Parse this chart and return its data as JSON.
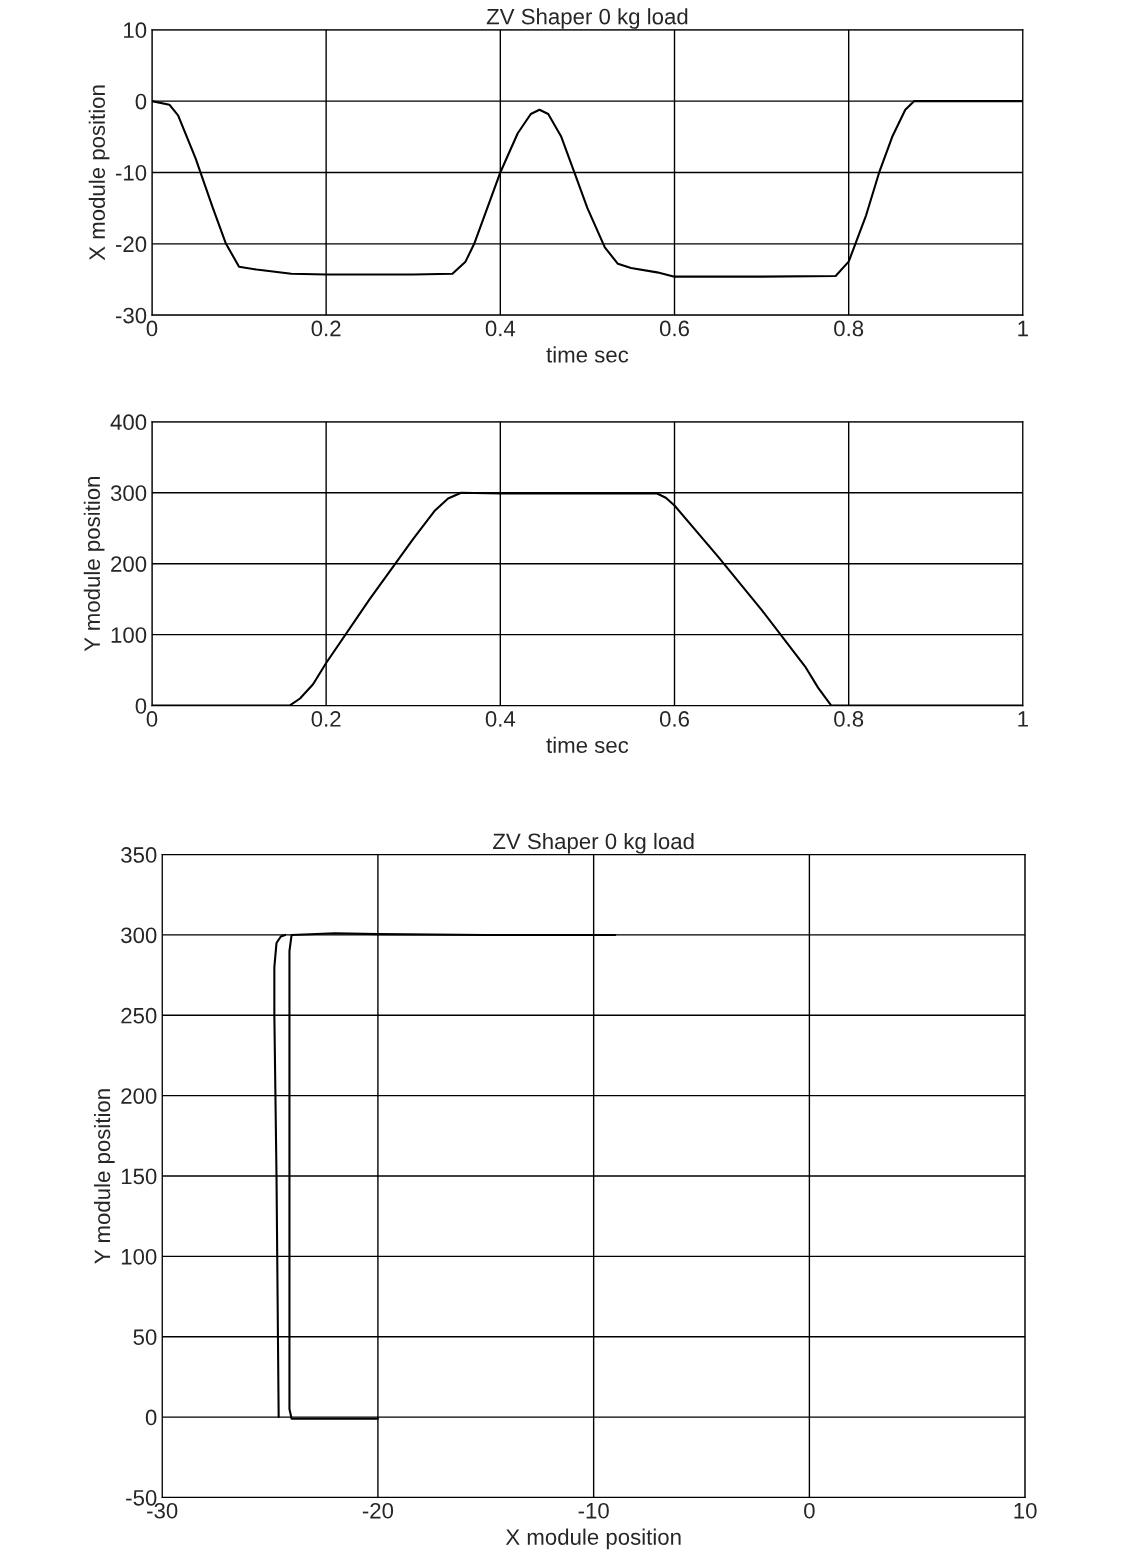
{
  "chart_data": [
    {
      "type": "line",
      "title": "ZV Shaper 0 kg load",
      "xlabel": "time sec",
      "ylabel": "X module position",
      "xlim": [
        0,
        1
      ],
      "ylim": [
        -30,
        10
      ],
      "xticks": [
        0,
        0.2,
        0.4,
        0.6,
        0.8,
        1
      ],
      "yticks": [
        -30,
        -20,
        -10,
        0,
        10
      ],
      "grid": true,
      "x": [
        0,
        0.02,
        0.03,
        0.05,
        0.07,
        0.085,
        0.1,
        0.12,
        0.16,
        0.2,
        0.3,
        0.345,
        0.36,
        0.37,
        0.385,
        0.4,
        0.42,
        0.435,
        0.445,
        0.455,
        0.47,
        0.485,
        0.5,
        0.52,
        0.535,
        0.55,
        0.58,
        0.6,
        0.7,
        0.785,
        0.8,
        0.82,
        0.835,
        0.85,
        0.865,
        0.875,
        1
      ],
      "series": [
        {
          "color": "#000000",
          "values": [
            0,
            -0.5,
            -2,
            -8,
            -15,
            -20,
            -23.2,
            -23.6,
            -24.2,
            -24.3,
            -24.3,
            -24.2,
            -22.5,
            -20,
            -15,
            -10,
            -4.5,
            -1.8,
            -1.2,
            -1.8,
            -5,
            -10,
            -15,
            -20.5,
            -22.8,
            -23.4,
            -24,
            -24.6,
            -24.6,
            -24.5,
            -22.5,
            -16,
            -10,
            -5,
            -1.2,
            0,
            0
          ]
        }
      ]
    },
    {
      "type": "line",
      "xlabel": "time sec",
      "ylabel": "Y module position",
      "xlim": [
        0,
        1
      ],
      "ylim": [
        0,
        400
      ],
      "xticks": [
        0,
        0.2,
        0.4,
        0.6,
        0.8,
        1
      ],
      "yticks": [
        0,
        100,
        200,
        300,
        400
      ],
      "grid": true,
      "x": [
        0,
        0.158,
        0.17,
        0.185,
        0.2,
        0.25,
        0.3,
        0.325,
        0.34,
        0.355,
        0.4,
        0.58,
        0.59,
        0.6,
        0.65,
        0.7,
        0.75,
        0.765,
        0.78,
        1
      ],
      "series": [
        {
          "color": "#000000",
          "values": [
            0,
            0,
            10,
            30,
            60,
            150,
            235,
            275,
            292,
            300,
            299,
            299,
            293,
            282,
            210,
            135,
            55,
            25,
            0,
            0
          ]
        }
      ]
    },
    {
      "type": "line",
      "title": "ZV Shaper 0 kg load",
      "xlabel": "X module position",
      "ylabel": "Y module position",
      "xlim": [
        -30,
        10
      ],
      "ylim": [
        -50,
        350
      ],
      "xticks": [
        -30,
        -20,
        -10,
        0,
        10
      ],
      "yticks": [
        -50,
        0,
        50,
        100,
        150,
        200,
        250,
        300,
        350
      ],
      "grid": true,
      "series": [
        {
          "color": "#000000",
          "x": [
            -9,
            -15,
            -20,
            -22,
            -24,
            -24.1,
            -24.1,
            -24.0,
            -23.6,
            -20
          ],
          "values": [
            300,
            300,
            300.5,
            301,
            300,
            290,
            5,
            -1,
            -1,
            -1
          ]
        },
        {
          "color": "#000000",
          "x": [
            -24.3,
            -24.5,
            -24.7,
            -24.8,
            -24.8,
            -24.7,
            -24.6
          ],
          "values": [
            300,
            299,
            295,
            280,
            250,
            150,
            0
          ]
        }
      ]
    }
  ]
}
